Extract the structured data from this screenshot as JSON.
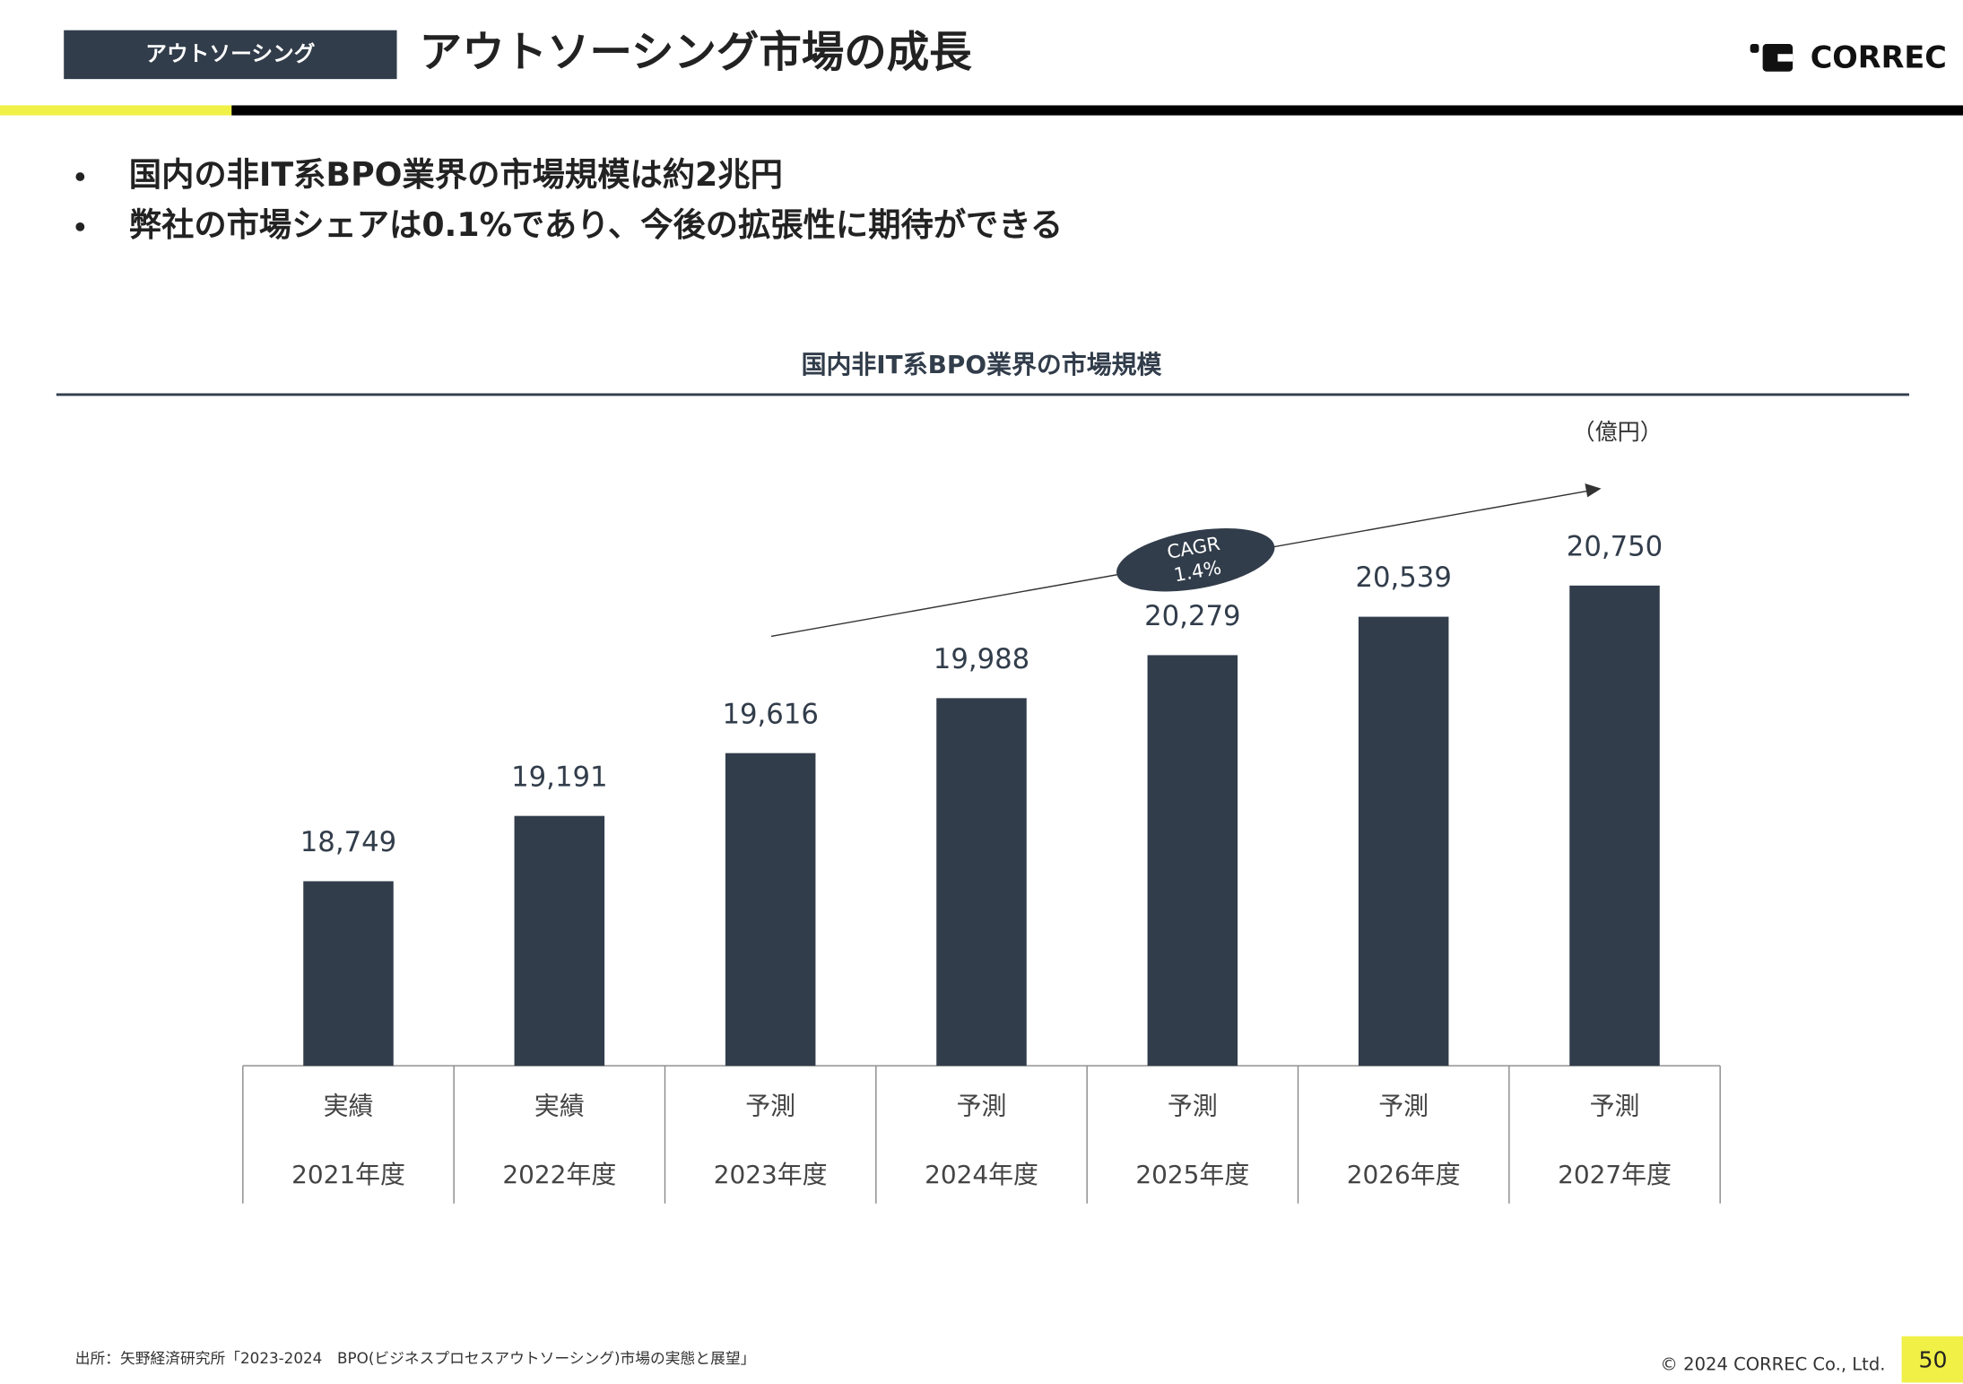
{
  "header": {
    "tag": "アウトソーシング",
    "title": "アウトソーシング市場の成長",
    "logo": "CORREC"
  },
  "bullets": [
    "国内の非IT系BPO業界の市場規模は約2兆円",
    "弊社の市場シェアは0.1%であり、今後の拡張性に期待ができる"
  ],
  "chart_data": {
    "type": "bar",
    "title": "国内非IT系BPO業界の市場規模",
    "unit": "（億円）",
    "categories": [
      "2021年度",
      "2022年度",
      "2023年度",
      "2024年度",
      "2025年度",
      "2026年度",
      "2027年度"
    ],
    "category_groups": [
      "実績",
      "実績",
      "予測",
      "予測",
      "予測",
      "予測",
      "予測"
    ],
    "values": [
      18749,
      19191,
      19616,
      19988,
      20279,
      20539,
      20750
    ],
    "value_labels": [
      "18,749",
      "19,191",
      "19,616",
      "19,988",
      "20,279",
      "20,539",
      "20,750"
    ],
    "annotation": [
      "CAGR",
      "1.4%"
    ],
    "color": "#323d4b",
    "ylim": [
      17500,
      21000
    ]
  },
  "footer": {
    "source": "出所：矢野経済研究所「2023-2024　BPO(ビジネスプロセスアウトソーシング)市場の実態と展望」",
    "copyright": "© 2024 CORREC Co., Ltd.",
    "page": "50"
  }
}
